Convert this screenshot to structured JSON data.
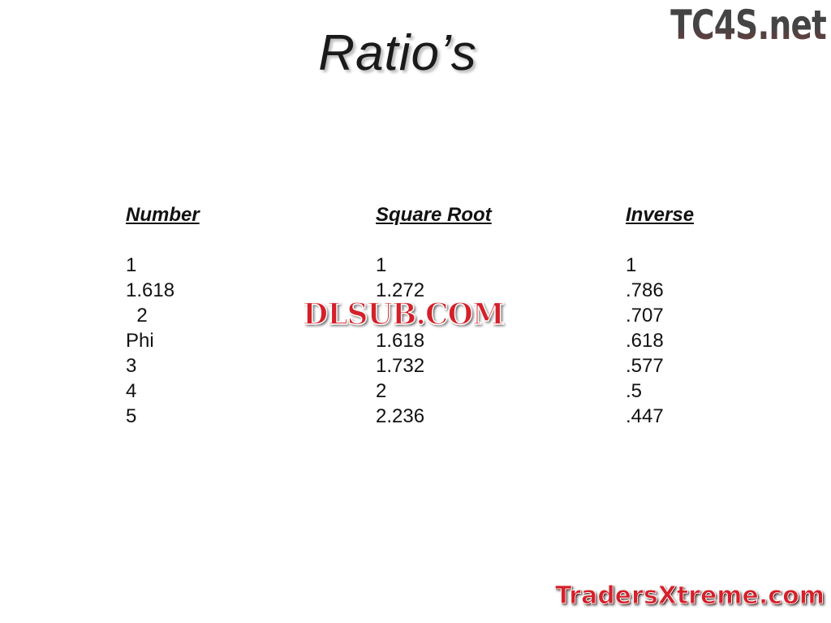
{
  "title": "Ratio’s",
  "logos": {
    "top": "TC4S.net",
    "watermark": "DLSUB.COM",
    "bottom": "TradersXtreme.com"
  },
  "table": {
    "headers": [
      "Number",
      "Square Root",
      "Inverse"
    ],
    "number": [
      "1",
      "1.618",
      "  2",
      "Phi",
      "3",
      "4",
      "5"
    ],
    "square_root": [
      "1",
      "1.272",
      "",
      "1.618",
      "1.732",
      "2",
      "2.236"
    ],
    "inverse": [
      "1",
      ".786",
      ".707",
      ".618",
      ".577",
      ".5",
      ".447"
    ]
  },
  "colors": {
    "watermark": "#d4202a"
  }
}
